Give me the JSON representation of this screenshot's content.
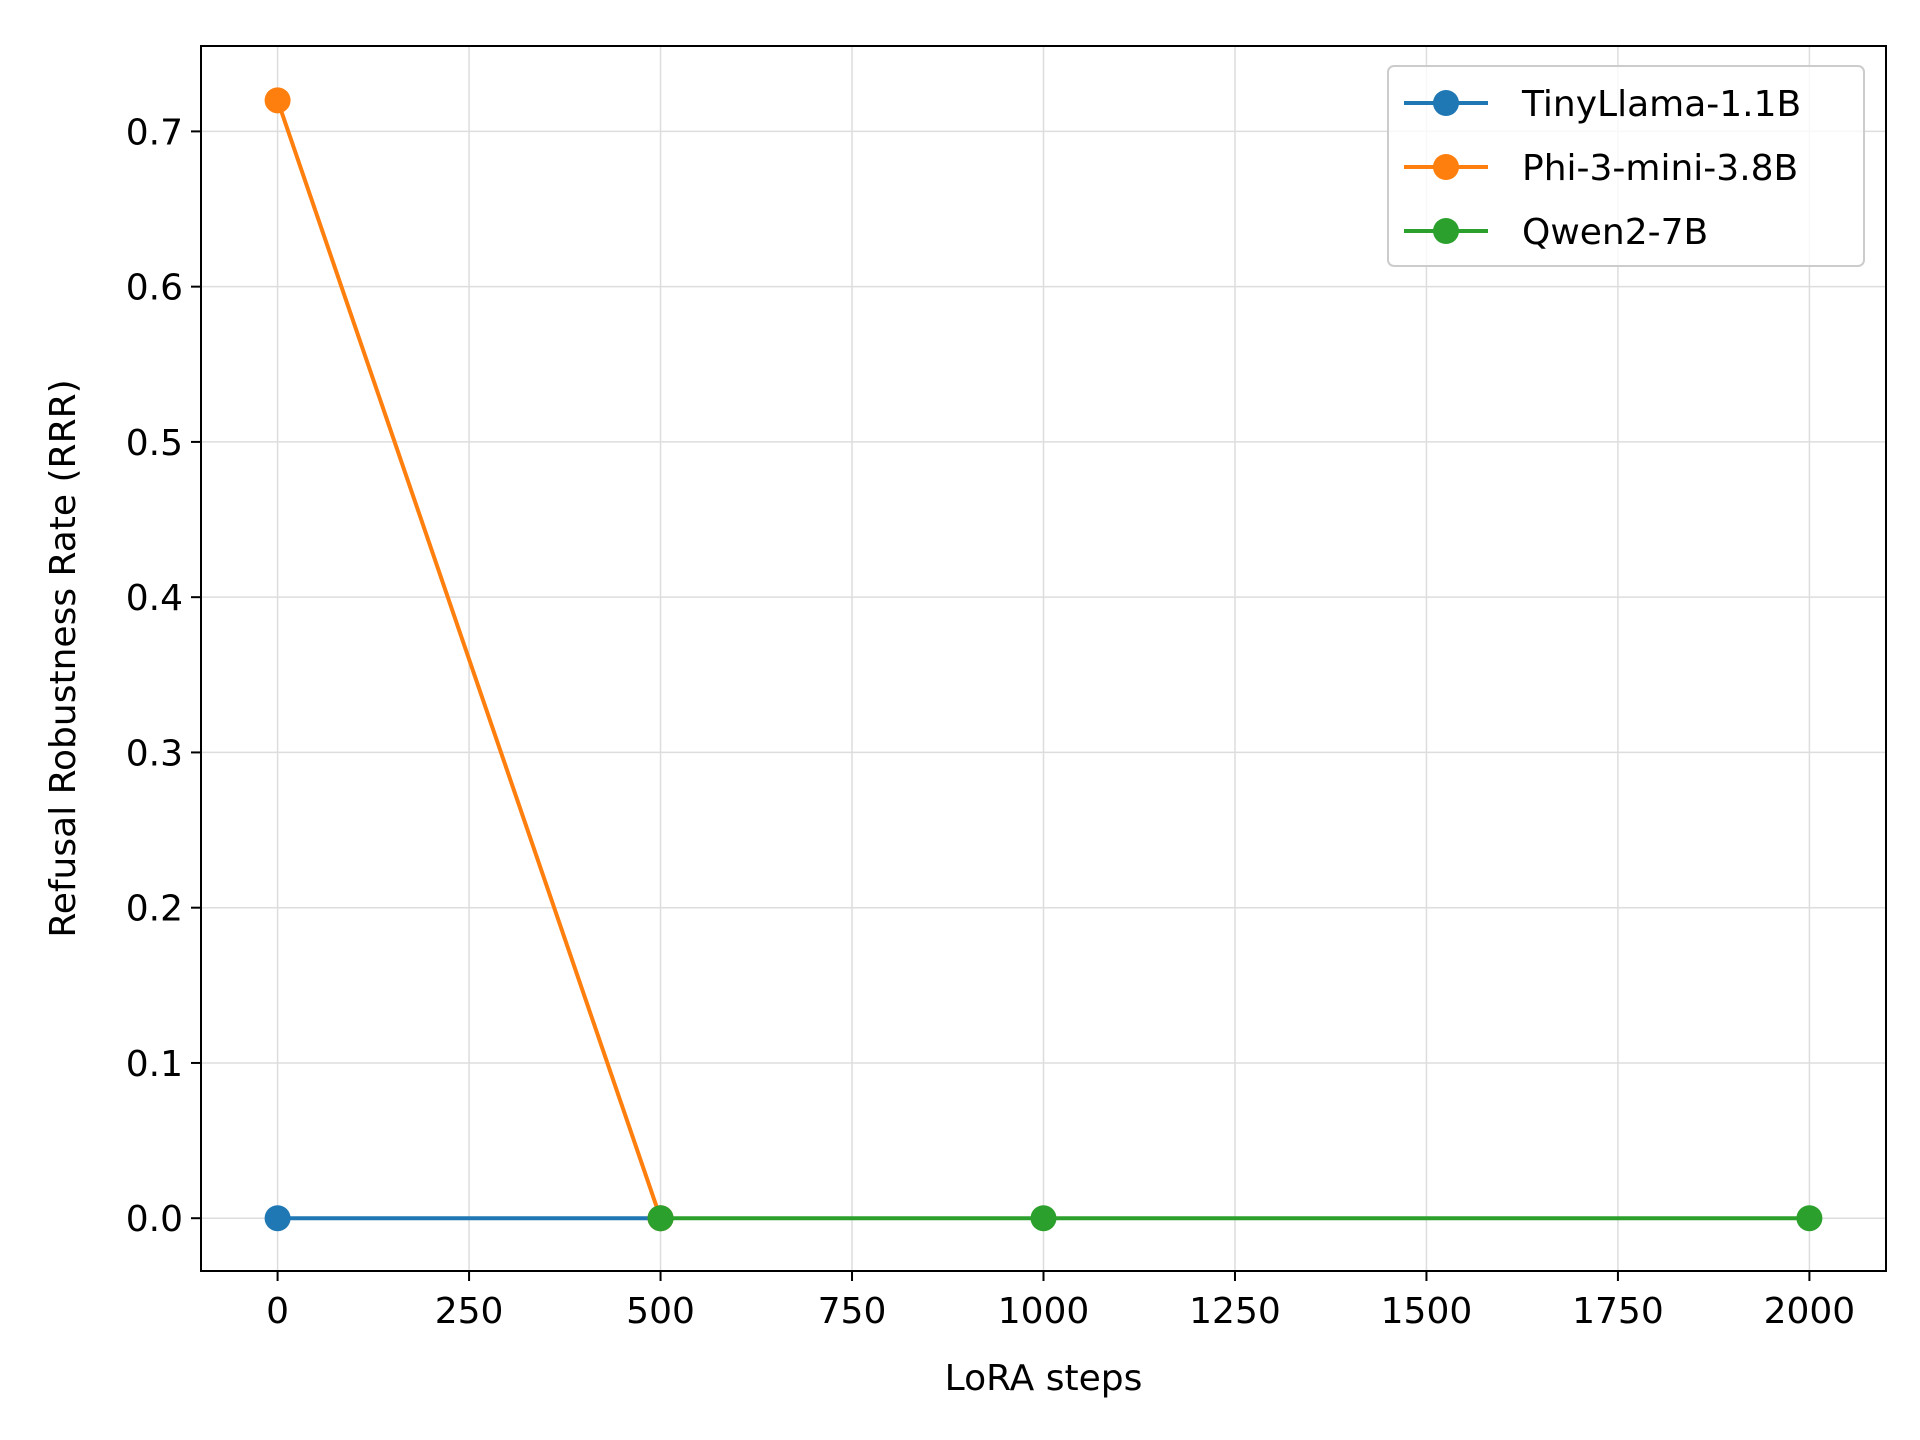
{
  "chart_data": {
    "type": "line",
    "xlabel": "LoRA steps",
    "ylabel": "Refusal Robustness Rate (RRR)",
    "xlim": [
      -100,
      2100
    ],
    "ylim": [
      -0.034,
      0.755
    ],
    "xticks": [
      0,
      250,
      500,
      750,
      1000,
      1250,
      1500,
      1750,
      2000
    ],
    "yticks": [
      0.0,
      0.1,
      0.2,
      0.3,
      0.4,
      0.5,
      0.6,
      0.7
    ],
    "xtick_labels": [
      "0",
      "250",
      "500",
      "750",
      "1000",
      "1250",
      "1500",
      "1750",
      "2000"
    ],
    "ytick_labels": [
      "0.0",
      "0.1",
      "0.2",
      "0.3",
      "0.4",
      "0.5",
      "0.6",
      "0.7"
    ],
    "grid": true,
    "legend_position": "top-right",
    "series": [
      {
        "name": "TinyLlama-1.1B",
        "color": "#1f77b4",
        "x": [
          0,
          500
        ],
        "y": [
          0.0,
          0.0
        ]
      },
      {
        "name": "Phi-3-mini-3.8B",
        "color": "#ff7f0e",
        "x": [
          0,
          500
        ],
        "y": [
          0.72,
          0.0
        ]
      },
      {
        "name": "Qwen2-7B",
        "color": "#2ca02c",
        "x": [
          500,
          1000,
          2000
        ],
        "y": [
          0.0,
          0.0,
          0.0
        ]
      }
    ]
  }
}
